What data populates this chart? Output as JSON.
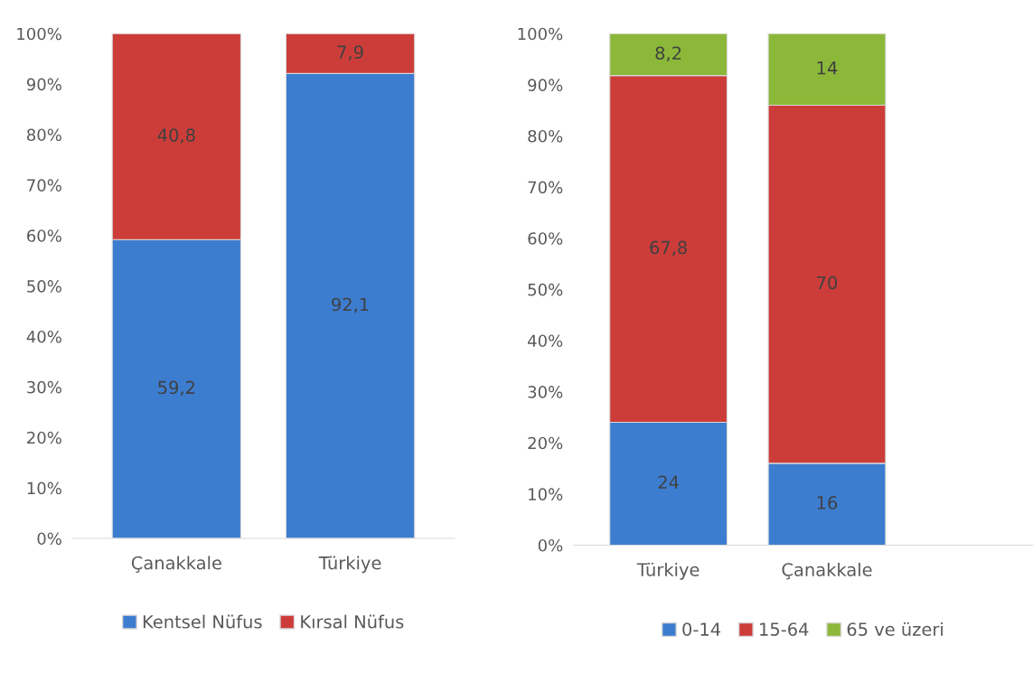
{
  "chart_data": [
    {
      "type": "bar",
      "stacked": true,
      "categories": [
        "Çanakkale",
        "Türkiye"
      ],
      "ylim": [
        0,
        100
      ],
      "yticks": [
        {
          "value": 0,
          "label": "0%"
        },
        {
          "value": 10,
          "label": "10%"
        },
        {
          "value": 20,
          "label": "20%"
        },
        {
          "value": 30,
          "label": "30%"
        },
        {
          "value": 40,
          "label": "40%"
        },
        {
          "value": 50,
          "label": "50%"
        },
        {
          "value": 60,
          "label": "60%"
        },
        {
          "value": 70,
          "label": "70%"
        },
        {
          "value": 80,
          "label": "80%"
        },
        {
          "value": 90,
          "label": "90%"
        },
        {
          "value": 100,
          "label": "100%"
        }
      ],
      "grid": false,
      "legend": "bottom",
      "series": [
        {
          "name": "Kentsel Nüfus",
          "color": "#3d7dd0",
          "values": [
            59.2,
            92.1
          ],
          "value_labels": [
            "59,2",
            "92,1"
          ]
        },
        {
          "name": "Kırsal Nüfus",
          "color": "#cc3d3a",
          "values": [
            40.8,
            7.9
          ],
          "value_labels": [
            "40,8",
            "7,9"
          ]
        }
      ]
    },
    {
      "type": "bar",
      "stacked": true,
      "categories": [
        "Türkiye",
        "Çanakkale"
      ],
      "ylim": [
        0,
        100
      ],
      "yticks": [
        {
          "value": 0,
          "label": "0%"
        },
        {
          "value": 10,
          "label": "10%"
        },
        {
          "value": 20,
          "label": "20%"
        },
        {
          "value": 30,
          "label": "30%"
        },
        {
          "value": 40,
          "label": "40%"
        },
        {
          "value": 50,
          "label": "50%"
        },
        {
          "value": 60,
          "label": "60%"
        },
        {
          "value": 70,
          "label": "70%"
        },
        {
          "value": 80,
          "label": "80%"
        },
        {
          "value": 90,
          "label": "90%"
        },
        {
          "value": 100,
          "label": "100%"
        }
      ],
      "grid": false,
      "legend": "bottom",
      "series": [
        {
          "name": "0-14",
          "color": "#3d7dd0",
          "values": [
            24,
            16
          ],
          "value_labels": [
            "24",
            "16"
          ]
        },
        {
          "name": "15-64",
          "color": "#cc3d3a",
          "values": [
            67.8,
            70
          ],
          "value_labels": [
            "67,8",
            "70"
          ]
        },
        {
          "name": "65 ve üzeri",
          "color": "#8cb83a",
          "values": [
            8.2,
            14
          ],
          "value_labels": [
            "8,2",
            "14"
          ]
        }
      ]
    }
  ]
}
